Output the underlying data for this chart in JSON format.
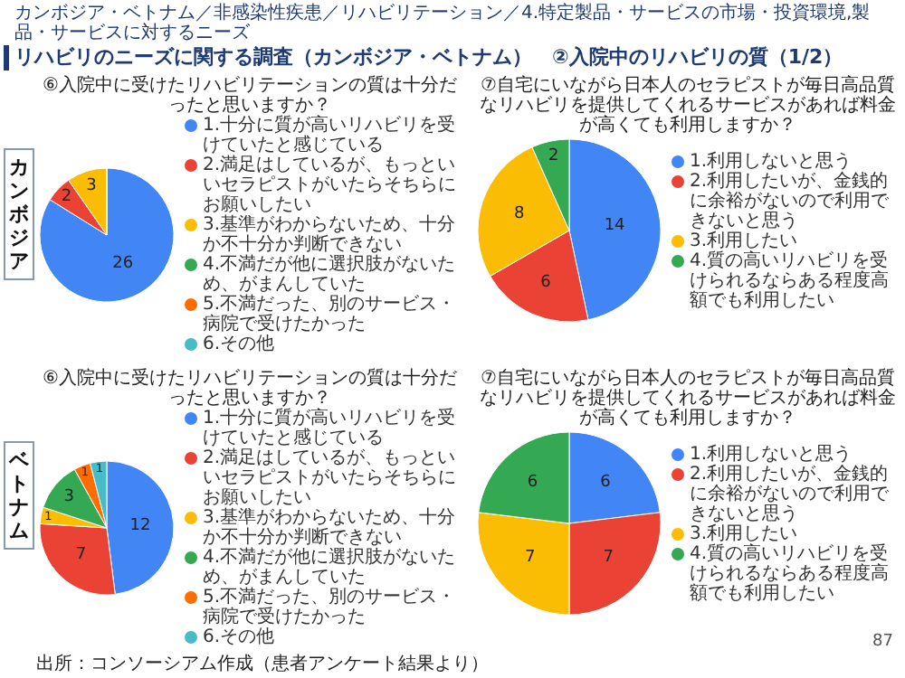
{
  "chart_data": [
    {
      "type": "other",
      "title": "リハビリのニーズに関する調査（カンボジア・ベトナム）　②入院中のリハビリの質（1/2）",
      "subtitle": "カンボジア・ベトナム／非感染性疾患／リハビリテーション／4.特定製品・サービスの市場・投資環境,製品・サービスに対するニーズ",
      "annotations": [
        "カンボジア",
        "ベトナム",
        "出所：コンソーシアム作成（患者アンケート結果より）",
        "87"
      ]
    },
    {
      "type": "pie",
      "title": "⑥入院中に受けたリハビリテーションの質は十分だったと思いますか？",
      "categories": [
        "1.十分に質が高いリハビリを受けていたと感じている",
        "2.満足はしているが、もっといいセラピストがいたらそちらにお願いしたい",
        "3.基準がわからないため、十分か不十分か判断できない",
        "4.不満だが他に選択肢がないため、がまんしていた",
        "5.不満だった、別のサービス・病院で受けたかった",
        "6.その他"
      ],
      "values": [
        26,
        2,
        3,
        0,
        0,
        0
      ],
      "colors": [
        "#4285f4",
        "#ea4335",
        "#fbbc04",
        "#34a853",
        "#ff6d01",
        "#46bdc6"
      ],
      "data_labels": true,
      "legend": "right"
    },
    {
      "type": "pie",
      "title": "⑦自宅にいながら日本人のセラピストが毎日高品質なリハビリを提供してくれるサービスがあれば料金が高くても利用しますか？",
      "categories": [
        "1.利用しないと思う",
        "2.利用したいが、金銭的に余裕がないので利用できないと思う",
        "3.利用したい",
        "4.質の高いリハビリを受けられるならある程度高額でも利用したい"
      ],
      "values": [
        14,
        6,
        8,
        2
      ],
      "colors": [
        "#4285f4",
        "#ea4335",
        "#fbbc04",
        "#34a853"
      ],
      "data_labels": true,
      "legend": "right"
    },
    {
      "type": "pie",
      "title": "⑥入院中に受けたリハビリテーションの質は十分だったと思いますか？",
      "categories": [
        "1.十分に質が高いリハビリを受けていたと感じている",
        "2.満足はしているが、もっといいセラピストがいたらそちらにお願いしたい",
        "3.基準がわからないため、十分か不十分か判断できない",
        "4.不満だが他に選択肢がないため、がまんしていた",
        "5.不満だった、別のサービス・病院で受けたかった",
        "6.その他"
      ],
      "values": [
        12,
        7,
        1,
        3,
        1,
        1
      ],
      "colors": [
        "#4285f4",
        "#ea4335",
        "#fbbc04",
        "#34a853",
        "#ff6d01",
        "#46bdc6"
      ],
      "data_labels": true,
      "legend": "right"
    },
    {
      "type": "pie",
      "title": "⑦自宅にいながら日本人のセラピストが毎日高品質なリハビリを提供してくれるサービスがあれば料金が高くても利用しますか？",
      "categories": [
        "1.利用しないと思う",
        "2.利用したいが、金銭的に余裕がないので利用できないと思う",
        "3.利用したい",
        "4.質の高いリハビリを受けられるならある程度高額でも利用したい"
      ],
      "values": [
        6,
        7,
        7,
        6
      ],
      "colors": [
        "#4285f4",
        "#ea4335",
        "#fbbc04",
        "#34a853"
      ],
      "data_labels": true,
      "legend": "right"
    }
  ]
}
